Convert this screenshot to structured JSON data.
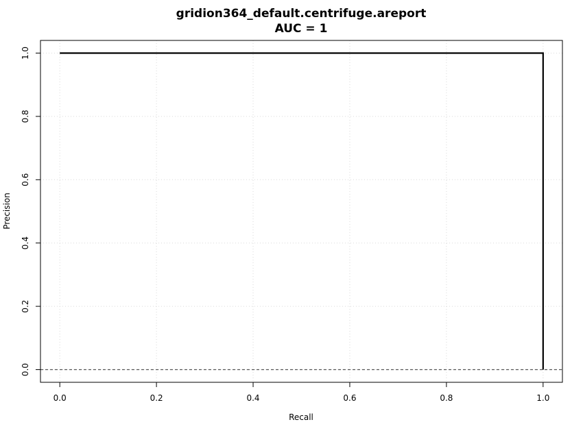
{
  "chart_data": {
    "type": "line",
    "title": "gridion364_default.centrifuge.areport",
    "subtitle": "AUC = 1",
    "xlabel": "Recall",
    "ylabel": "Precision",
    "xlim": [
      -0.04,
      1.04
    ],
    "ylim": [
      -0.04,
      1.04
    ],
    "x_ticks": [
      "0.0",
      "0.2",
      "0.4",
      "0.6",
      "0.8",
      "1.0"
    ],
    "y_ticks": [
      "0.0",
      "0.2",
      "0.4",
      "0.6",
      "0.8",
      "1.0"
    ],
    "grid": true,
    "series": [
      {
        "x": [
          0.0,
          1.0,
          1.0
        ],
        "y": [
          1.0,
          1.0,
          0.0
        ],
        "color": "#000000",
        "line": "solid"
      }
    ],
    "baseline": {
      "y": 0.0,
      "color": "#555555",
      "line": "dashed"
    }
  }
}
